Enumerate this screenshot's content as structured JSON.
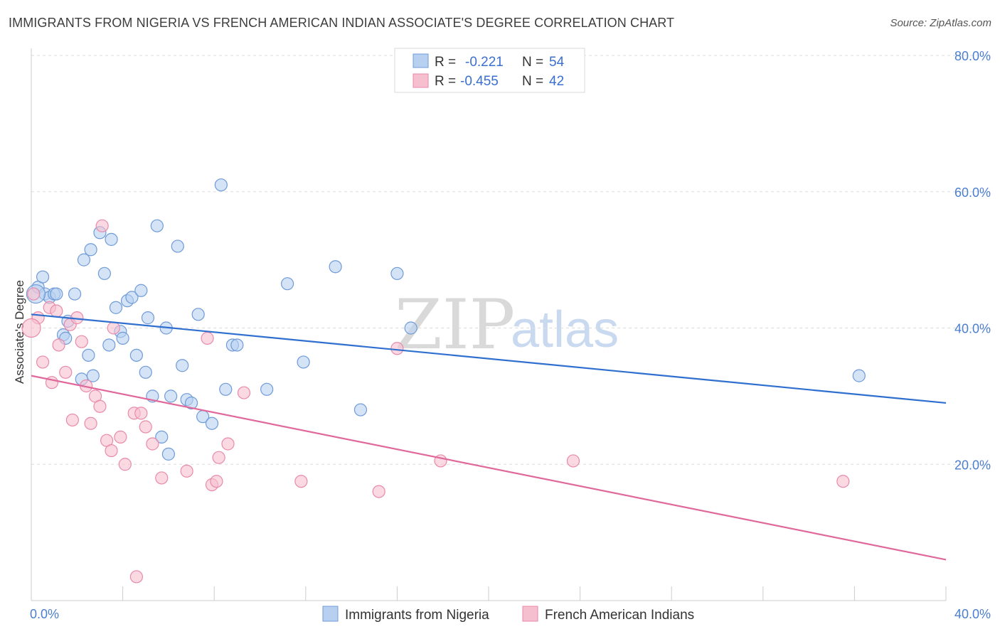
{
  "header": {
    "title": "IMMIGRANTS FROM NIGERIA VS FRENCH AMERICAN INDIAN ASSOCIATE'S DEGREE CORRELATION CHART",
    "source": "Source: ZipAtlas.com"
  },
  "watermark": {
    "part1": "ZIP",
    "part2": "atlas"
  },
  "legend": {
    "series1": {
      "r_label": "R =",
      "r_value": "-0.221",
      "n_label": "N =",
      "n_value": "54"
    },
    "series2": {
      "r_label": "R =",
      "r_value": "-0.455",
      "n_label": "N =",
      "n_value": "42"
    }
  },
  "colors": {
    "blue_fill": "#b7d0f0",
    "blue_stroke": "#6f9bd8",
    "blue_line": "#2f6fcf",
    "pink_fill": "#f6bfd0",
    "pink_stroke": "#e98aa9",
    "pink_line": "#e0689a",
    "grid": "#dddddd",
    "tick_text": "#4a7ed0"
  },
  "chart_data": {
    "type": "scatter",
    "title": "IMMIGRANTS FROM NIGERIA VS FRENCH AMERICAN INDIAN ASSOCIATE'S DEGREE CORRELATION CHART",
    "xlabel": "",
    "ylabel": "Associate's Degree",
    "xlim": [
      0,
      40
    ],
    "ylim": [
      0,
      80
    ],
    "x_tick_labels": [
      "0.0%",
      "40.0%"
    ],
    "y_ticks": [
      20,
      40,
      60,
      80
    ],
    "y_tick_labels": [
      "20.0%",
      "40.0%",
      "60.0%",
      "80.0%"
    ],
    "grid": true,
    "legend_position": "top-center",
    "series": [
      {
        "name": "Immigrants from Nigeria",
        "color": "#b7d0f0",
        "trend": {
          "x": [
            0,
            40
          ],
          "y": [
            42.0,
            29.0
          ]
        },
        "points": [
          [
            0.3,
            46.0
          ],
          [
            0.5,
            47.5
          ],
          [
            0.6,
            45.0
          ],
          [
            0.8,
            44.5
          ],
          [
            1.0,
            45.0
          ],
          [
            1.1,
            45.0
          ],
          [
            1.4,
            39.0
          ],
          [
            1.5,
            38.5
          ],
          [
            1.6,
            41.0
          ],
          [
            1.9,
            45.0
          ],
          [
            2.2,
            32.5
          ],
          [
            2.3,
            50.0
          ],
          [
            2.5,
            36.0
          ],
          [
            2.6,
            51.5
          ],
          [
            2.7,
            33.0
          ],
          [
            3.0,
            54.0
          ],
          [
            3.2,
            48.0
          ],
          [
            3.4,
            37.5
          ],
          [
            3.5,
            53.0
          ],
          [
            3.7,
            43.0
          ],
          [
            3.9,
            39.5
          ],
          [
            4.0,
            38.5
          ],
          [
            4.2,
            44.0
          ],
          [
            4.4,
            44.5
          ],
          [
            4.6,
            36.0
          ],
          [
            4.8,
            45.5
          ],
          [
            5.0,
            33.5
          ],
          [
            5.1,
            41.5
          ],
          [
            5.3,
            30.0
          ],
          [
            5.5,
            55.0
          ],
          [
            5.7,
            24.0
          ],
          [
            5.9,
            40.0
          ],
          [
            6.0,
            21.5
          ],
          [
            6.1,
            30.0
          ],
          [
            6.4,
            52.0
          ],
          [
            6.6,
            34.5
          ],
          [
            6.8,
            29.5
          ],
          [
            7.0,
            29.0
          ],
          [
            7.3,
            42.0
          ],
          [
            7.5,
            27.0
          ],
          [
            7.9,
            26.0
          ],
          [
            8.3,
            61.0
          ],
          [
            8.5,
            31.0
          ],
          [
            8.8,
            37.5
          ],
          [
            9.0,
            37.5
          ],
          [
            10.3,
            31.0
          ],
          [
            11.2,
            46.5
          ],
          [
            11.9,
            35.0
          ],
          [
            13.3,
            49.0
          ],
          [
            14.4,
            28.0
          ],
          [
            16.0,
            48.0
          ],
          [
            16.6,
            40.0
          ],
          [
            36.2,
            33.0
          ],
          [
            0.2,
            45.0
          ]
        ]
      },
      {
        "name": "French American Indians",
        "color": "#f6bfd0",
        "trend": {
          "x": [
            0,
            40
          ],
          "y": [
            33.0,
            6.0
          ]
        },
        "points": [
          [
            0.1,
            45.0
          ],
          [
            0.3,
            41.5
          ],
          [
            0.5,
            35.0
          ],
          [
            0.8,
            43.0
          ],
          [
            0.9,
            32.0
          ],
          [
            1.1,
            42.5
          ],
          [
            1.2,
            37.5
          ],
          [
            1.5,
            33.5
          ],
          [
            1.7,
            40.5
          ],
          [
            1.8,
            26.5
          ],
          [
            2.0,
            41.5
          ],
          [
            2.2,
            38.0
          ],
          [
            2.4,
            31.5
          ],
          [
            2.6,
            26.0
          ],
          [
            2.8,
            30.0
          ],
          [
            3.0,
            28.5
          ],
          [
            3.1,
            55.0
          ],
          [
            3.3,
            23.5
          ],
          [
            3.5,
            22.0
          ],
          [
            3.6,
            40.0
          ],
          [
            3.9,
            24.0
          ],
          [
            4.1,
            20.0
          ],
          [
            4.5,
            27.5
          ],
          [
            4.8,
            27.5
          ],
          [
            5.0,
            25.5
          ],
          [
            4.6,
            3.5
          ],
          [
            5.3,
            23.0
          ],
          [
            5.7,
            18.0
          ],
          [
            6.8,
            19.0
          ],
          [
            7.7,
            38.5
          ],
          [
            7.9,
            17.0
          ],
          [
            8.1,
            17.5
          ],
          [
            8.2,
            21.0
          ],
          [
            8.6,
            23.0
          ],
          [
            9.3,
            30.5
          ],
          [
            11.8,
            17.5
          ],
          [
            15.2,
            16.0
          ],
          [
            16.0,
            37.0
          ],
          [
            17.9,
            20.5
          ],
          [
            23.7,
            20.5
          ],
          [
            35.5,
            17.5
          ],
          [
            0.0,
            40.0
          ]
        ]
      }
    ]
  },
  "bottom_legend": {
    "items": [
      {
        "label": "Immigrants from Nigeria"
      },
      {
        "label": "French American Indians"
      }
    ]
  }
}
